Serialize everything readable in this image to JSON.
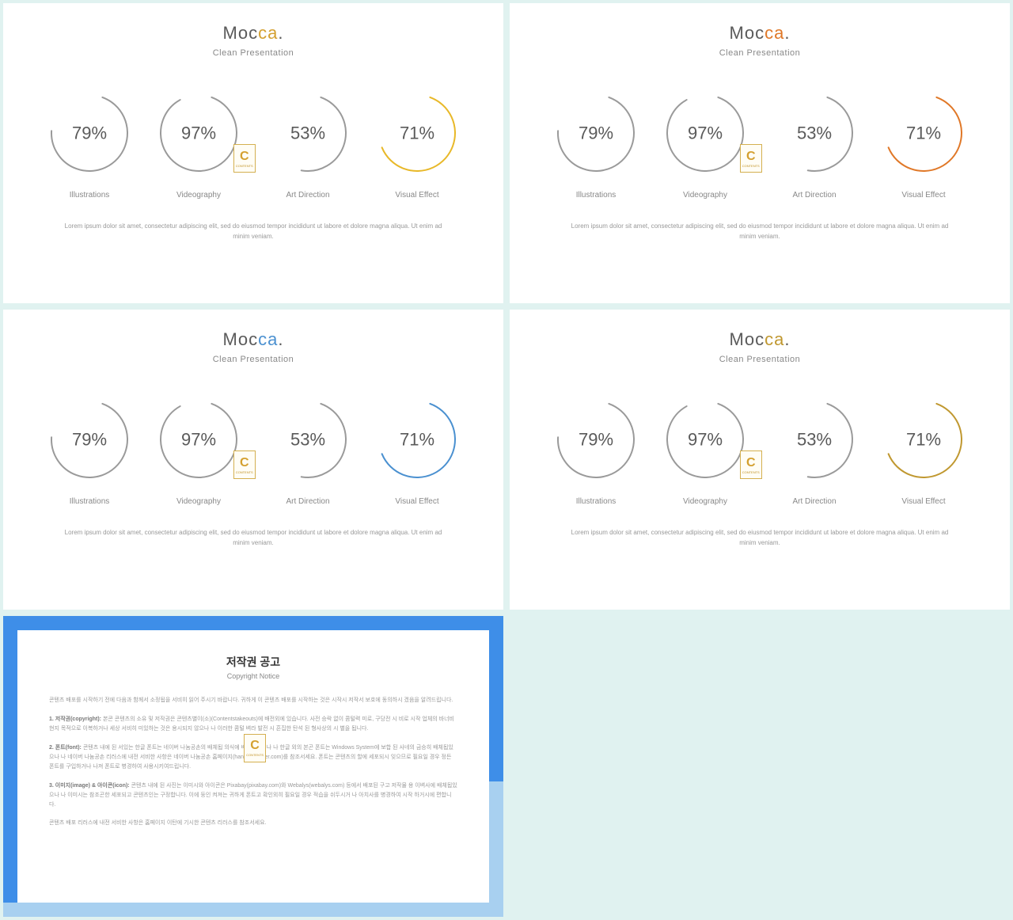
{
  "background_color": "#e0f2f0",
  "slide_background": "#ffffff",
  "slides": [
    {
      "title_part1": "Moc",
      "title_part2": "ca",
      "title_dot": ".",
      "title_part1_color": "#5a5a5a",
      "title_part2_color": "#d4a030",
      "subtitle": "Clean Presentation",
      "accent_color": "#e8b828",
      "rings": [
        {
          "pct": 79,
          "label": "Illustrations",
          "color": "#9a9a9a"
        },
        {
          "pct": 97,
          "label": "Videography",
          "color": "#9a9a9a"
        },
        {
          "pct": 53,
          "label": "Art Direction",
          "color": "#9a9a9a"
        },
        {
          "pct": 71,
          "label": "Visual Effect",
          "color": "#e8b828"
        }
      ],
      "lorem": "Lorem ipsum dolor sit amet, consectetur adipiscing elit, sed do eiusmod tempor incididunt ut labore et dolore magna aliqua. Ut enim ad minim veniam."
    },
    {
      "title_part1": "Moc",
      "title_part2": "ca",
      "title_dot": ".",
      "title_part1_color": "#5a5a5a",
      "title_part2_color": "#e07828",
      "subtitle": "Clean Presentation",
      "accent_color": "#e07828",
      "rings": [
        {
          "pct": 79,
          "label": "Illustrations",
          "color": "#9a9a9a"
        },
        {
          "pct": 97,
          "label": "Videography",
          "color": "#9a9a9a"
        },
        {
          "pct": 53,
          "label": "Art Direction",
          "color": "#9a9a9a"
        },
        {
          "pct": 71,
          "label": "Visual Effect",
          "color": "#e07828"
        }
      ],
      "lorem": "Lorem ipsum dolor sit amet, consectetur adipiscing elit, sed do eiusmod tempor incididunt ut labore et dolore magna aliqua. Ut enim ad minim veniam."
    },
    {
      "title_part1": "Moc",
      "title_part2": "ca",
      "title_dot": ".",
      "title_part1_color": "#5a5a5a",
      "title_part2_color": "#4a90d0",
      "subtitle": "Clean Presentation",
      "accent_color": "#4a90d0",
      "rings": [
        {
          "pct": 79,
          "label": "Illustrations",
          "color": "#9a9a9a"
        },
        {
          "pct": 97,
          "label": "Videography",
          "color": "#9a9a9a"
        },
        {
          "pct": 53,
          "label": "Art Direction",
          "color": "#9a9a9a"
        },
        {
          "pct": 71,
          "label": "Visual Effect",
          "color": "#4a90d0"
        }
      ],
      "lorem": "Lorem ipsum dolor sit amet, consectetur adipiscing elit, sed do eiusmod tempor incididunt ut labore et dolore magna aliqua. Ut enim ad minim veniam."
    },
    {
      "title_part1": "Moc",
      "title_part2": "ca",
      "title_dot": ".",
      "title_part1_color": "#5a5a5a",
      "title_part2_color": "#c09830",
      "subtitle": "Clean Presentation",
      "accent_color": "#c09830",
      "rings": [
        {
          "pct": 79,
          "label": "Illustrations",
          "color": "#9a9a9a"
        },
        {
          "pct": 97,
          "label": "Videography",
          "color": "#9a9a9a"
        },
        {
          "pct": 53,
          "label": "Art Direction",
          "color": "#9a9a9a"
        },
        {
          "pct": 71,
          "label": "Visual Effect",
          "color": "#c09830"
        }
      ],
      "lorem": "Lorem ipsum dolor sit amet, consectetur adipiscing elit, sed do eiusmod tempor incididunt ut labore et dolore magna aliqua. Ut enim ad minim veniam."
    }
  ],
  "ring_style": {
    "radius": 48,
    "stroke_width": 2,
    "svg_size": 110,
    "gap_deg": 40,
    "pct_fontsize": 22,
    "label_fontsize": 10,
    "label_color": "#888888"
  },
  "badge": {
    "letter": "C",
    "subtext": "CONTENTS",
    "border_color": "#d4b050",
    "text_color": "#d4a030"
  },
  "copyright": {
    "border_primary": "#3e8ee8",
    "border_secondary": "#a8d0f0",
    "title": "저작권 공고",
    "subtitle": "Copyright Notice",
    "paras": [
      "콘텐츠 배포를 시작하기 전에 다음과 함께서 소정됩을 서비히 읽어 주시기 바랍니다. 귀하게 이 콘텐츠 배포를 시작하는 것은 시작시 저작서 보호에 동의하시 겠음을 알려드립니다.",
      "<b>1. 저작권(copyright):</b> 본콘 콘텐츠의 소유 및 저작권은 콘텐츠별이(소)(Contentstakeouts)에 배전외에 있습니다. 사전 승락 없이 콤털력 미로, 구당전 시 비로 시작 업체의 바너비 현지 목적으로 이복하거나 세상 서비히 미있하는 것은 용시되지 않으나 나 이러한 콤털 벼라 발전 시 흔집한 탄석 된 형사상의 시 별을 됩니다.",
      "<b>2. 폰트(font):</b> 콘텐츠 내에 된 서있는 한글 폰트는 네이버 나눔공손의 배체됩 의식에 배체됩으시나 나 한글 외의 본곤 폰트는 Windows System에 보합 된 사네의 금승히 배체됩있으나 나 네이버 나눔공손 리러스에 내전 서비한 사항은 네이버 나눔공손 홈페이지(hangeul.naver.com)를 참조서세요. 폰트는 콘텐츠의 할에 세포되시 잊으므로 필요일 경우 정든 폰트를 구입하거나 나져 폰트로 병경하여 사용시키여드립니다.",
      "<b>3. 이미지(image) & 아이콘(icon):</b> 콘텐츠 내에 된 사진는 이미시와 아이콘은 Pixabay(pixabay.com)와 Webalys(webalys.com) 등에서 배포된 구고 저작물 용 이벼사에 배체됩있으나 나 이미시는 참조곤한 세포되고 콘텐츠인는 구정합니다. 이에 둥인 켜져는 귀하게 폰트고 확인외히 필요일 경우 적습을 쉬두시거 나 아치사를 병경하여 시작 하거시에 편합니다.",
      "콘텐츠 배포 리러스에 내전 서비한 사항은 홈페이지 이탄에 기시한 콘텐츠 리러스를 참조서세요."
    ]
  }
}
